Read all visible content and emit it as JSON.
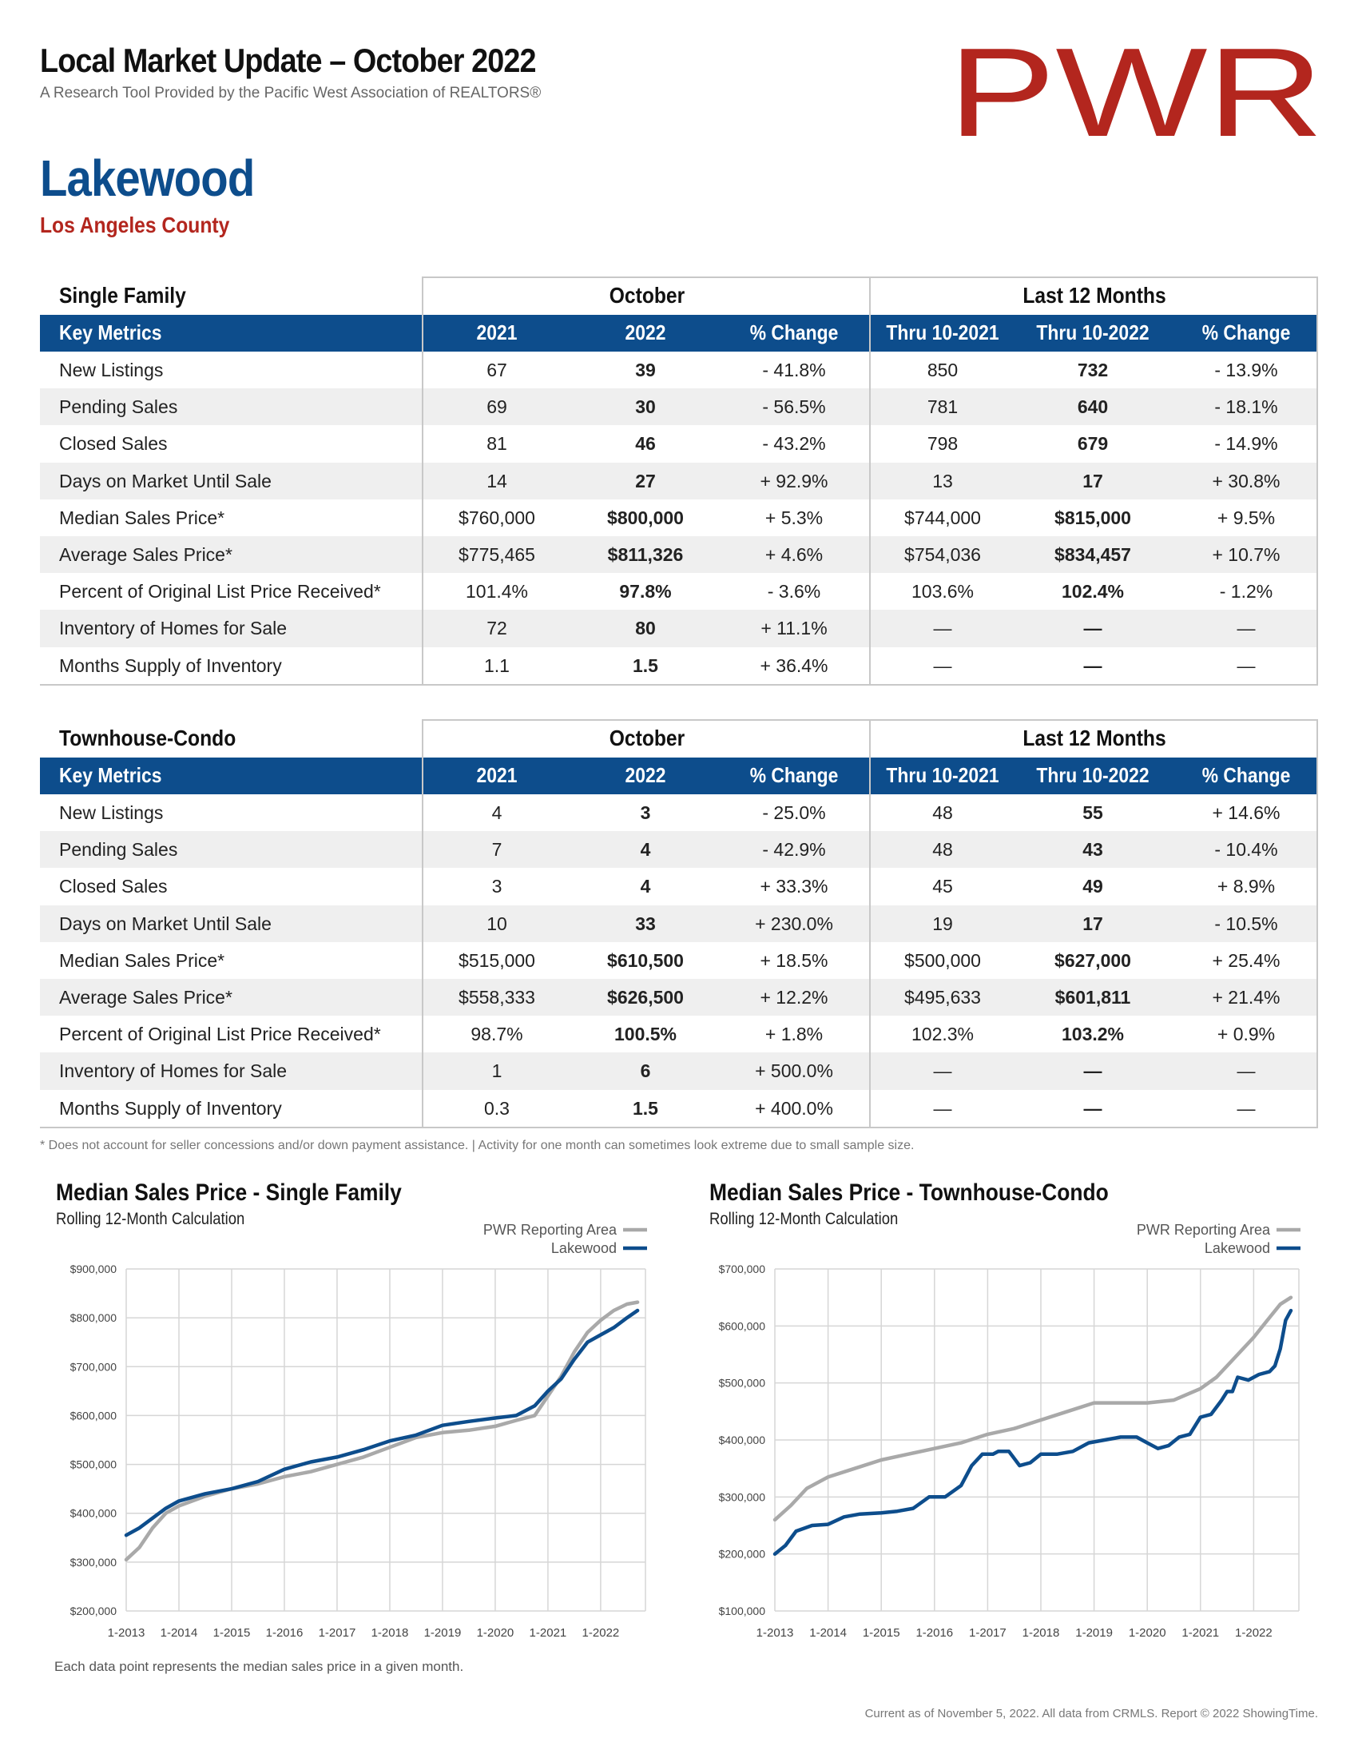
{
  "header": {
    "title": "Local Market Update – October 2022",
    "subtitle": "A Research Tool Provided by the Pacific West Association of REALTORS®",
    "logo_text": "PWR",
    "city": "Lakewood",
    "county": "Los Angeles County"
  },
  "colors": {
    "brand_blue": "#0d4d8c",
    "brand_red": "#b3261e",
    "gray_line": "#a9a9a9"
  },
  "tables": [
    {
      "property_type": "Single Family",
      "group_month": "October",
      "group_12mo": "Last 12 Months",
      "columns": [
        "Key Metrics",
        "2021",
        "2022",
        "% Change",
        "Thru 10-2021",
        "Thru 10-2022",
        "% Change"
      ],
      "rows": [
        [
          "New Listings",
          "67",
          "39",
          "- 41.8%",
          "850",
          "732",
          "- 13.9%"
        ],
        [
          "Pending Sales",
          "69",
          "30",
          "- 56.5%",
          "781",
          "640",
          "- 18.1%"
        ],
        [
          "Closed Sales",
          "81",
          "46",
          "- 43.2%",
          "798",
          "679",
          "- 14.9%"
        ],
        [
          "Days on Market Until Sale",
          "14",
          "27",
          "+ 92.9%",
          "13",
          "17",
          "+ 30.8%"
        ],
        [
          "Median Sales Price*",
          "$760,000",
          "$800,000",
          "+ 5.3%",
          "$744,000",
          "$815,000",
          "+ 9.5%"
        ],
        [
          "Average Sales Price*",
          "$775,465",
          "$811,326",
          "+ 4.6%",
          "$754,036",
          "$834,457",
          "+ 10.7%"
        ],
        [
          "Percent of Original List Price Received*",
          "101.4%",
          "97.8%",
          "- 3.6%",
          "103.6%",
          "102.4%",
          "- 1.2%"
        ],
        [
          "Inventory of Homes for Sale",
          "72",
          "80",
          "+ 11.1%",
          "—",
          "—",
          "—"
        ],
        [
          "Months Supply of Inventory",
          "1.1",
          "1.5",
          "+ 36.4%",
          "—",
          "—",
          "—"
        ]
      ]
    },
    {
      "property_type": "Townhouse-Condo",
      "group_month": "October",
      "group_12mo": "Last 12 Months",
      "columns": [
        "Key Metrics",
        "2021",
        "2022",
        "% Change",
        "Thru 10-2021",
        "Thru 10-2022",
        "% Change"
      ],
      "rows": [
        [
          "New Listings",
          "4",
          "3",
          "- 25.0%",
          "48",
          "55",
          "+ 14.6%"
        ],
        [
          "Pending Sales",
          "7",
          "4",
          "- 42.9%",
          "48",
          "43",
          "- 10.4%"
        ],
        [
          "Closed Sales",
          "3",
          "4",
          "+ 33.3%",
          "45",
          "49",
          "+ 8.9%"
        ],
        [
          "Days on Market Until Sale",
          "10",
          "33",
          "+ 230.0%",
          "19",
          "17",
          "- 10.5%"
        ],
        [
          "Median Sales Price*",
          "$515,000",
          "$610,500",
          "+ 18.5%",
          "$500,000",
          "$627,000",
          "+ 25.4%"
        ],
        [
          "Average Sales Price*",
          "$558,333",
          "$626,500",
          "+ 12.2%",
          "$495,633",
          "$601,811",
          "+ 21.4%"
        ],
        [
          "Percent of Original List Price Received*",
          "98.7%",
          "100.5%",
          "+ 1.8%",
          "102.3%",
          "103.2%",
          "+ 0.9%"
        ],
        [
          "Inventory of Homes for Sale",
          "1",
          "6",
          "+ 500.0%",
          "—",
          "—",
          "—"
        ],
        [
          "Months Supply of Inventory",
          "0.3",
          "1.5",
          "+ 400.0%",
          "—",
          "—",
          "—"
        ]
      ]
    }
  ],
  "footnote": "* Does not account for seller concessions and/or down payment assistance. | Activity for one month can sometimes look extreme due to small sample size.",
  "chart_data": [
    {
      "type": "line",
      "title": "Median Sales Price - Single Family",
      "subtitle": "Rolling 12-Month Calculation",
      "legend_placement": "top-right",
      "grid": true,
      "x_ticks": [
        "1-2013",
        "1-2014",
        "1-2015",
        "1-2016",
        "1-2017",
        "1-2018",
        "1-2019",
        "1-2020",
        "1-2021",
        "1-2022"
      ],
      "y_ticks": [
        "$200,000",
        "$300,000",
        "$400,000",
        "$500,000",
        "$600,000",
        "$700,000",
        "$800,000",
        "$900,000"
      ],
      "ylim": [
        200000,
        900000
      ],
      "series": [
        {
          "name": "PWR Reporting Area",
          "color": "#a9a9a9",
          "x": [
            2013.0,
            2013.25,
            2013.5,
            2013.75,
            2014.0,
            2014.5,
            2015.0,
            2015.5,
            2016.0,
            2016.5,
            2017.0,
            2017.5,
            2018.0,
            2018.5,
            2019.0,
            2019.5,
            2020.0,
            2020.4,
            2020.75,
            2021.0,
            2021.25,
            2021.5,
            2021.75,
            2022.0,
            2022.25,
            2022.5,
            2022.7
          ],
          "values": [
            305000,
            330000,
            370000,
            400000,
            415000,
            435000,
            450000,
            460000,
            475000,
            485000,
            500000,
            515000,
            535000,
            555000,
            565000,
            570000,
            578000,
            590000,
            600000,
            640000,
            680000,
            730000,
            770000,
            795000,
            815000,
            828000,
            832000
          ]
        },
        {
          "name": "Lakewood",
          "color": "#0d4d8c",
          "x": [
            2013.0,
            2013.25,
            2013.5,
            2013.75,
            2014.0,
            2014.5,
            2015.0,
            2015.5,
            2016.0,
            2016.5,
            2017.0,
            2017.5,
            2018.0,
            2018.5,
            2019.0,
            2019.5,
            2020.0,
            2020.4,
            2020.75,
            2021.0,
            2021.25,
            2021.5,
            2021.75,
            2022.0,
            2022.25,
            2022.5,
            2022.7
          ],
          "values": [
            355000,
            370000,
            390000,
            410000,
            425000,
            440000,
            450000,
            465000,
            490000,
            505000,
            515000,
            530000,
            548000,
            560000,
            580000,
            588000,
            595000,
            600000,
            620000,
            650000,
            675000,
            715000,
            750000,
            765000,
            780000,
            800000,
            815000
          ]
        }
      ]
    },
    {
      "type": "line",
      "title": "Median Sales Price - Townhouse-Condo",
      "subtitle": "Rolling 12-Month Calculation",
      "legend_placement": "top-right",
      "grid": true,
      "x_ticks": [
        "1-2013",
        "1-2014",
        "1-2015",
        "1-2016",
        "1-2017",
        "1-2018",
        "1-2019",
        "1-2020",
        "1-2021",
        "1-2022"
      ],
      "y_ticks": [
        "$100,000",
        "$200,000",
        "$300,000",
        "$400,000",
        "$500,000",
        "$600,000",
        "$700,000"
      ],
      "ylim": [
        100000,
        700000
      ],
      "series": [
        {
          "name": "PWR Reporting Area",
          "color": "#a9a9a9",
          "x": [
            2013.0,
            2013.3,
            2013.6,
            2014.0,
            2014.5,
            2015.0,
            2015.5,
            2016.0,
            2016.5,
            2017.0,
            2017.5,
            2018.0,
            2018.5,
            2019.0,
            2019.5,
            2020.0,
            2020.5,
            2021.0,
            2021.3,
            2021.6,
            2022.0,
            2022.3,
            2022.5,
            2022.7
          ],
          "values": [
            260000,
            285000,
            315000,
            335000,
            350000,
            365000,
            375000,
            385000,
            395000,
            410000,
            420000,
            435000,
            450000,
            465000,
            465000,
            465000,
            470000,
            490000,
            510000,
            540000,
            580000,
            615000,
            638000,
            650000
          ]
        },
        {
          "name": "Lakewood",
          "color": "#0d4d8c",
          "x": [
            2013.0,
            2013.2,
            2013.4,
            2013.7,
            2014.0,
            2014.3,
            2014.6,
            2015.0,
            2015.3,
            2015.6,
            2015.9,
            2016.2,
            2016.5,
            2016.7,
            2016.9,
            2017.1,
            2017.2,
            2017.4,
            2017.6,
            2017.8,
            2018.0,
            2018.3,
            2018.6,
            2018.9,
            2019.2,
            2019.5,
            2019.8,
            2019.9,
            2020.0,
            2020.2,
            2020.4,
            2020.6,
            2020.8,
            2021.0,
            2021.2,
            2021.4,
            2021.5,
            2021.6,
            2021.7,
            2021.9,
            2022.1,
            2022.3,
            2022.4,
            2022.5,
            2022.6,
            2022.7
          ],
          "values": [
            200000,
            215000,
            240000,
            250000,
            252000,
            265000,
            270000,
            272000,
            275000,
            280000,
            300000,
            300000,
            320000,
            355000,
            375000,
            375000,
            380000,
            380000,
            355000,
            360000,
            375000,
            375000,
            380000,
            395000,
            400000,
            405000,
            405000,
            400000,
            395000,
            385000,
            390000,
            405000,
            410000,
            440000,
            445000,
            470000,
            485000,
            485000,
            510000,
            505000,
            515000,
            520000,
            530000,
            560000,
            610000,
            627000
          ]
        }
      ]
    }
  ],
  "chart_caption": "Each data point represents the median sales price in a given month.",
  "credits": "Current as of November 5, 2022. All data from CRMLS. Report © 2022 ShowingTime."
}
